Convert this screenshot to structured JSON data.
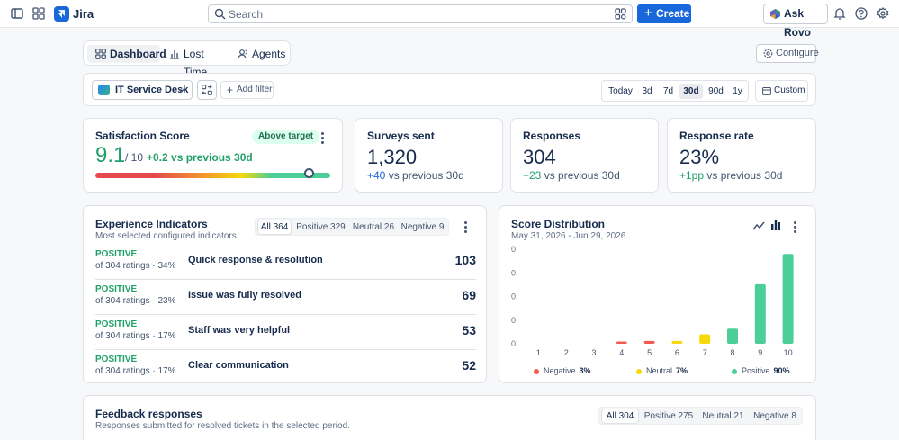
{
  "app": {
    "name": "Jira",
    "brand_color": "#1868db"
  },
  "topbar": {
    "search_placeholder": "Search",
    "create_label": "Create",
    "ask_rovo_label": "Ask Rovo",
    "icons": [
      "sidebar-toggle-icon",
      "app-switcher-icon",
      "notifications-icon",
      "help-icon",
      "settings-icon"
    ]
  },
  "view_tabs": [
    {
      "label": "Dashboard",
      "active": true,
      "icon": "dashboard-icon"
    },
    {
      "label": "Lost Time",
      "active": false,
      "icon": "bar-chart-icon"
    },
    {
      "label": "Agents",
      "active": false,
      "icon": "people-icon"
    }
  ],
  "configure_label": "Configure",
  "filters": {
    "project": "IT Service Desk",
    "add_filter_label": "Add filter",
    "ranges": [
      {
        "label": "Today",
        "active": false
      },
      {
        "label": "3d",
        "active": false
      },
      {
        "label": "7d",
        "active": false
      },
      {
        "label": "30d",
        "active": true
      },
      {
        "label": "90d",
        "active": false
      },
      {
        "label": "1y",
        "active": false
      }
    ],
    "custom_label": "Custom"
  },
  "satisfaction": {
    "title": "Satisfaction Score",
    "badge": "Above target",
    "score": "9.1",
    "scale": "/ 10",
    "delta": "+0.2 vs previous 30d",
    "gauge_level": 0.91
  },
  "kpis": [
    {
      "title": "Surveys sent",
      "value": "1,320",
      "delta": "+40",
      "delta_suffix": " vs previous 30d",
      "delta_color": "#1868db"
    },
    {
      "title": "Responses",
      "value": "304",
      "delta": "+23",
      "delta_suffix": " vs previous 30d",
      "delta_color": "#22a06b"
    },
    {
      "title": "Response rate",
      "value": "23%",
      "delta": "+1pp",
      "delta_suffix": " vs previous 30d",
      "delta_color": "#22a06b"
    }
  ],
  "experience": {
    "title": "Experience Indicators",
    "subtitle": "Most selected configured indicators.",
    "filters": [
      "All 364",
      "Positive 329",
      "Neutral 26",
      "Negative 9"
    ],
    "rows": [
      {
        "sentiment": "POSITIVE",
        "meta": "of 304 ratings · 34%",
        "label": "Quick response & resolution",
        "count": "103"
      },
      {
        "sentiment": "POSITIVE",
        "meta": "of 304 ratings · 23%",
        "label": "Issue was fully resolved",
        "count": "69"
      },
      {
        "sentiment": "POSITIVE",
        "meta": "of 304 ratings · 17%",
        "label": "Staff was very helpful",
        "count": "53"
      },
      {
        "sentiment": "POSITIVE",
        "meta": "of 304 ratings · 17%",
        "label": "Clear communication",
        "count": "52"
      }
    ]
  },
  "distribution": {
    "title": "Score Distribution",
    "date_range": "May 31, 2026 - Jun 29, 2026",
    "legend": [
      {
        "label": "Negative",
        "value": "3%",
        "color": "#f15b50"
      },
      {
        "label": "Neutral",
        "value": "7%",
        "color": "#f5d90a"
      },
      {
        "label": "Positive",
        "value": "90%",
        "color": "#4bce97"
      }
    ]
  },
  "chart_data": {
    "type": "bar",
    "categories": [
      "1",
      "2",
      "3",
      "4",
      "5",
      "6",
      "7",
      "8",
      "9",
      "10"
    ],
    "values": [
      0,
      0,
      0,
      2,
      3,
      3,
      10,
      16,
      63,
      95
    ],
    "colors": [
      "#f15b50",
      "#f15b50",
      "#f15b50",
      "#f15b50",
      "#f15b50",
      "#f5d90a",
      "#f5d90a",
      "#4bce97",
      "#4bce97",
      "#4bce97"
    ],
    "y_tick_labels": [
      "0",
      "0",
      "0",
      "0",
      "0"
    ],
    "ylim": [
      0,
      100
    ],
    "grid": false,
    "legend_position": "bottom"
  },
  "feedback": {
    "title": "Feedback responses",
    "subtitle": "Responses submitted for resolved tickets in the selected period.",
    "filters": [
      "All 304",
      "Positive 275",
      "Neutral 21",
      "Negative 8"
    ]
  }
}
